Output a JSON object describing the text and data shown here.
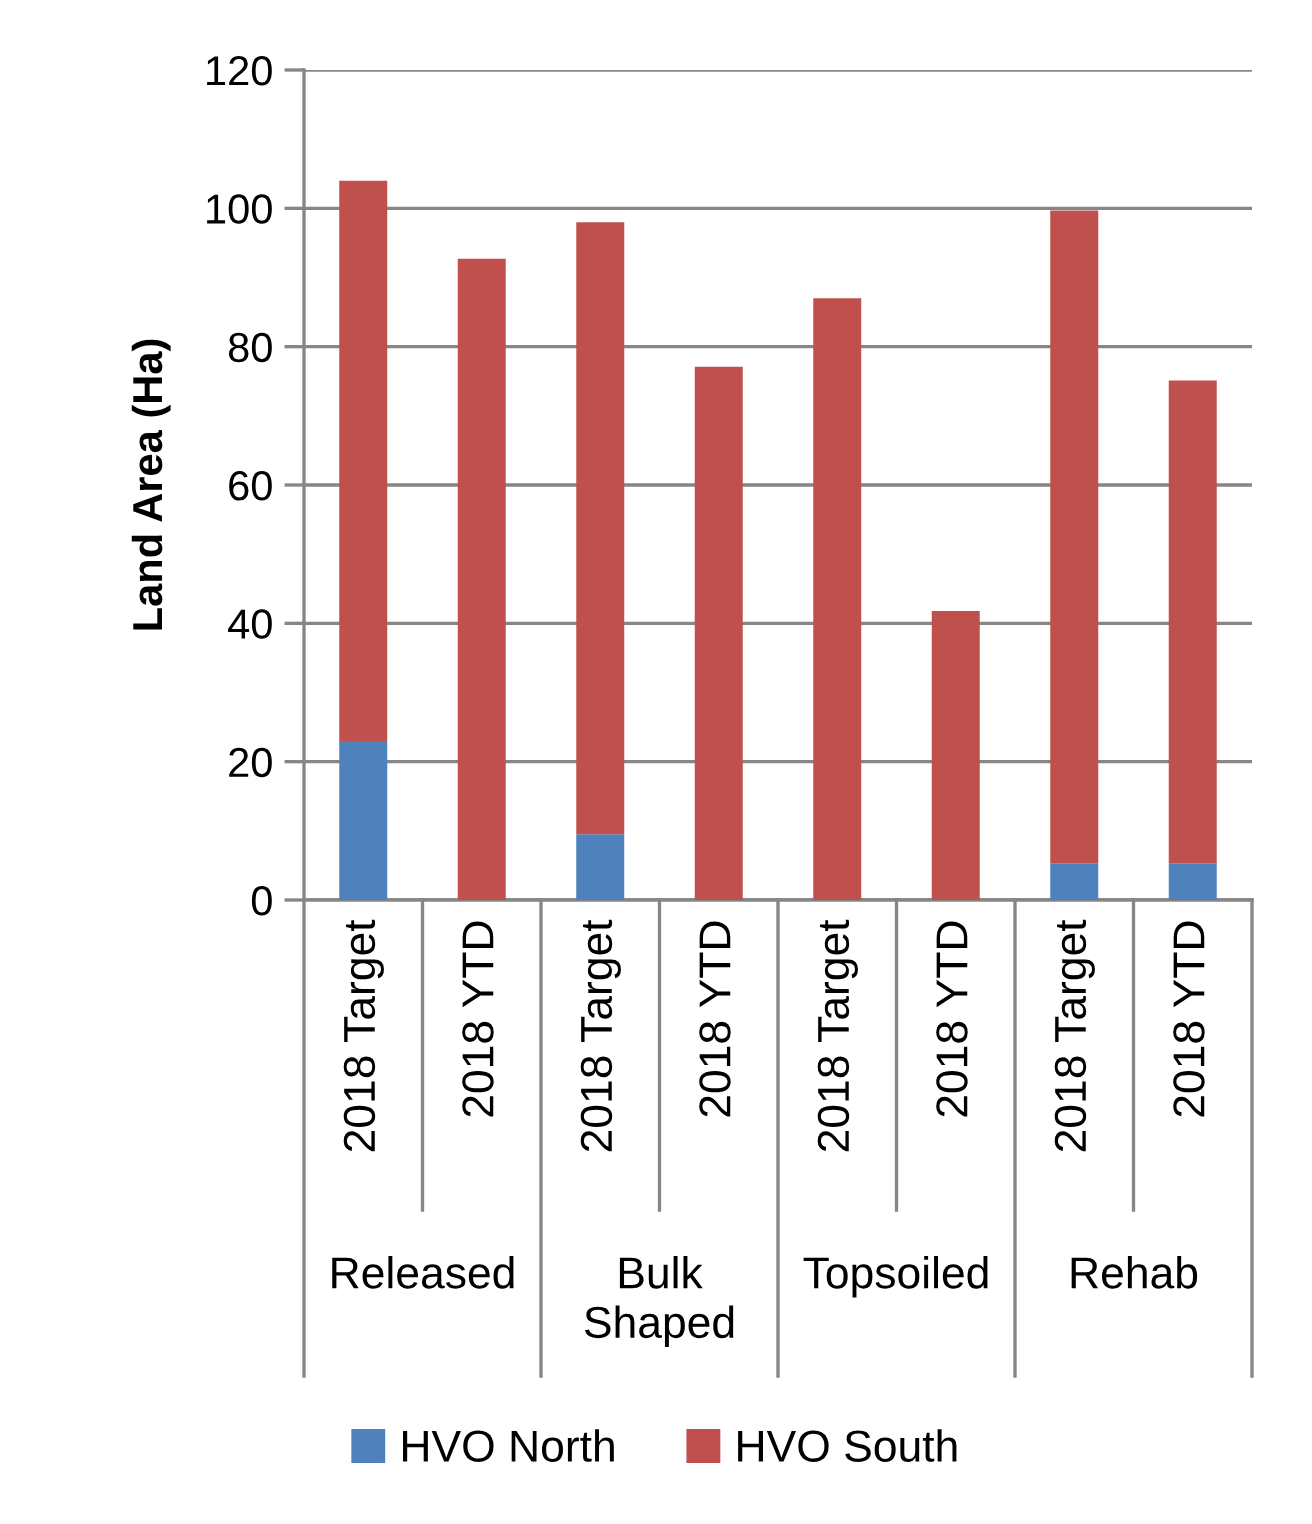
{
  "chart_data": {
    "type": "bar",
    "stacked": true,
    "ylabel": "Land Area (Ha)",
    "categories": [
      "2018 Target",
      "2018 YTD",
      "2018 Target",
      "2018 YTD",
      "2018 Target",
      "2018 YTD",
      "2018 Target",
      "2018 YTD"
    ],
    "annotations": [
      "Released",
      "Bulk\nShaped",
      "Topsoiled",
      "Rehab"
    ],
    "series": [
      {
        "name": "HVO North",
        "color": "#4f81bd",
        "values": [
          23,
          null,
          9.5,
          null,
          null,
          null,
          5.3,
          5.3
        ]
      },
      {
        "name": "HVO South",
        "color": "#c0504d",
        "values": [
          81,
          92.7,
          88.5,
          77.1,
          87,
          41.8,
          94.4,
          69.8
        ]
      }
    ],
    "ylim": [
      0,
      120
    ],
    "yticks": [
      0,
      20,
      40,
      60,
      80,
      100,
      120
    ],
    "grid": "y",
    "legend": "bottom"
  }
}
